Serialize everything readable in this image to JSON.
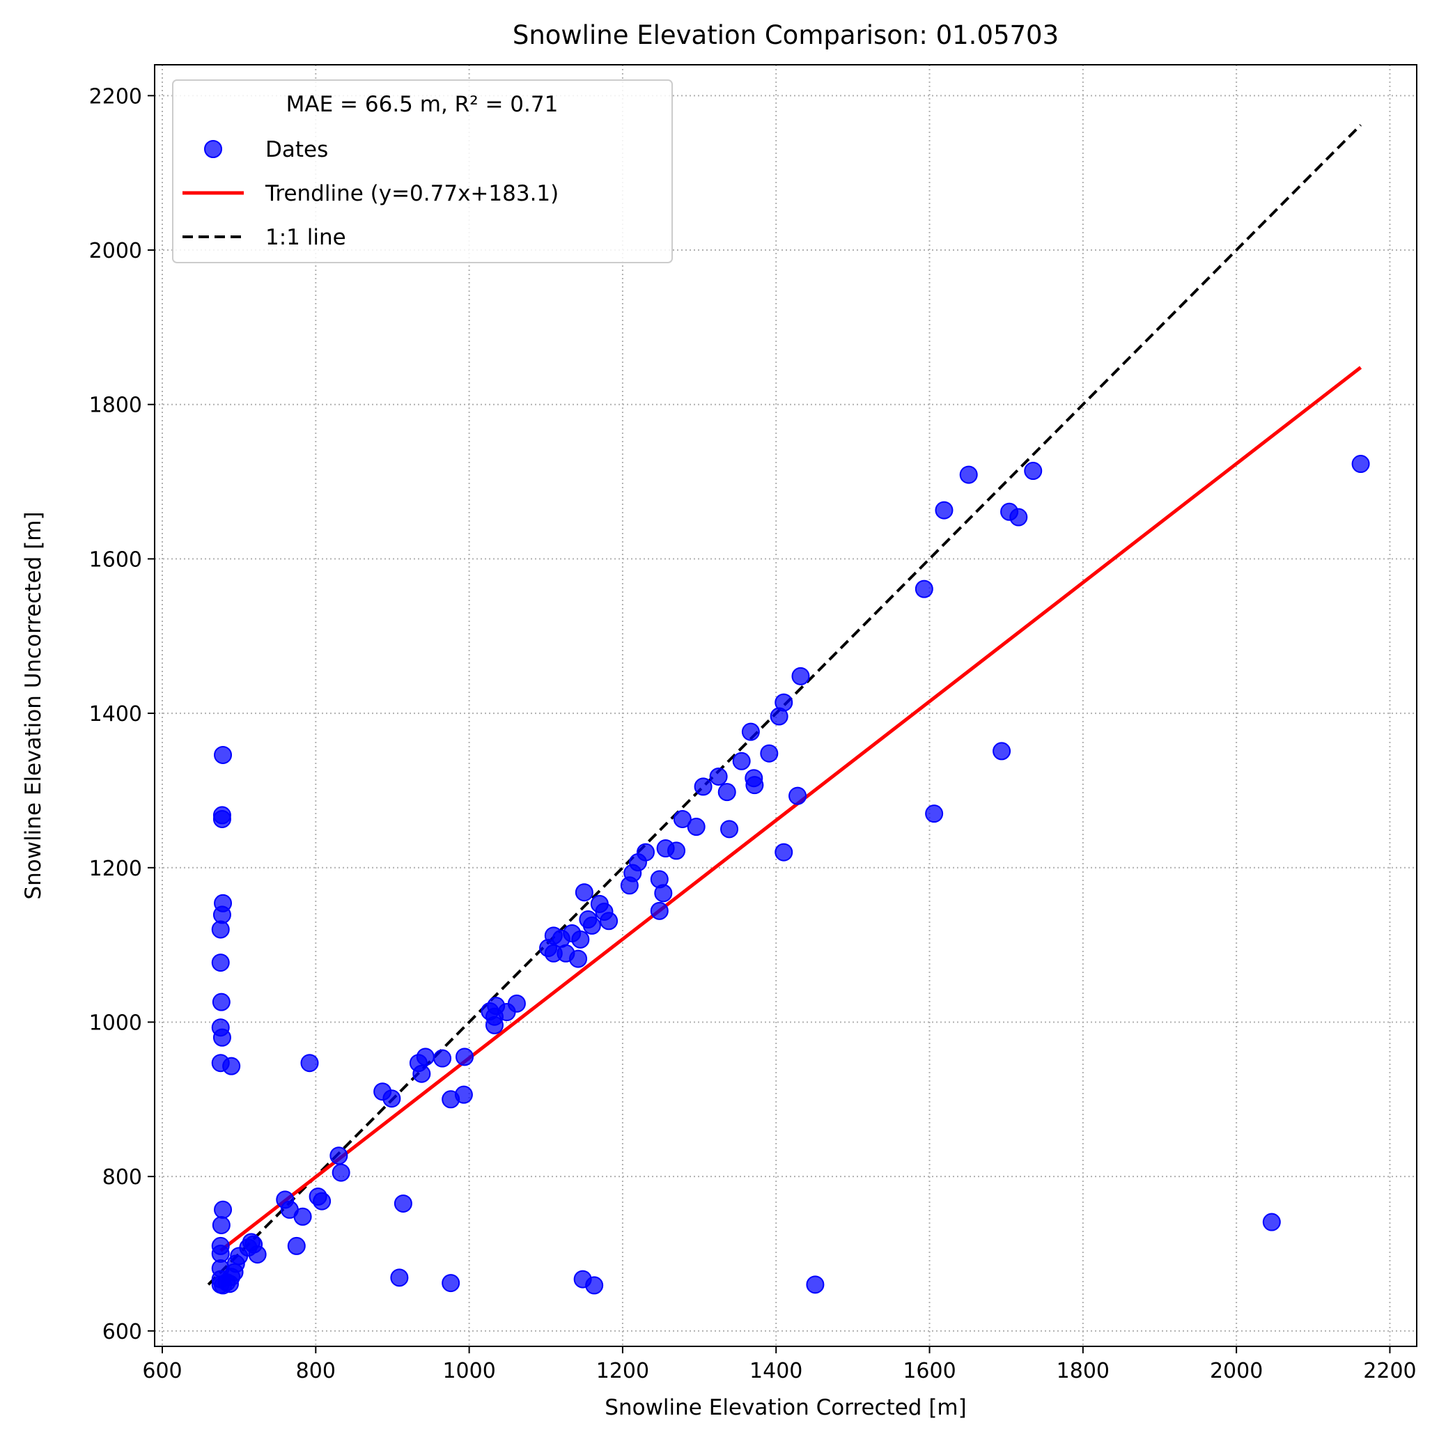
{
  "chart_data": {
    "type": "scatter",
    "title": "Snowline Elevation Comparison: 01.05703",
    "xlabel": "Snowline Elevation Corrected [m]",
    "ylabel": "Snowline Elevation Uncorrected [m]",
    "xlim": [
      590,
      2235
    ],
    "ylim": [
      580,
      2240
    ],
    "xticks": [
      600,
      800,
      1000,
      1200,
      1400,
      1600,
      1800,
      2000,
      2200
    ],
    "yticks": [
      600,
      800,
      1000,
      1200,
      1400,
      1600,
      1800,
      2000,
      2200
    ],
    "grid": true,
    "legend": {
      "placement": "upper-left",
      "title": "MAE = 66.5 m,  R² = 0.71",
      "entries": [
        "Dates",
        "Trendline (y=0.77x+183.1)",
        "1:1 line"
      ]
    },
    "colors": {
      "points": "#0000ff",
      "trendline": "#ff0000",
      "one_to_one": "#000000"
    },
    "trendline": {
      "slope": 0.77,
      "intercept": 183.1,
      "x_range": [
        676,
        2162
      ],
      "y_range": [
        704,
        1848
      ]
    },
    "one_to_one": {
      "x_range": [
        660,
        2162
      ]
    },
    "series": [
      {
        "name": "Dates",
        "points": [
          [
            679,
            1346
          ],
          [
            678,
            1268
          ],
          [
            678,
            1263
          ],
          [
            679,
            1154
          ],
          [
            678,
            1139
          ],
          [
            676,
            1120
          ],
          [
            676,
            1077
          ],
          [
            677,
            1026
          ],
          [
            676,
            993
          ],
          [
            678,
            980
          ],
          [
            676,
            947
          ],
          [
            690,
            943
          ],
          [
            679,
            757
          ],
          [
            677,
            737
          ],
          [
            676,
            710
          ],
          [
            676,
            700
          ],
          [
            676,
            681
          ],
          [
            676,
            667
          ],
          [
            676,
            660
          ],
          [
            679,
            659
          ],
          [
            684,
            663
          ],
          [
            688,
            661
          ],
          [
            690,
            670
          ],
          [
            694,
            676
          ],
          [
            696,
            687
          ],
          [
            700,
            697
          ],
          [
            712,
            708
          ],
          [
            716,
            715
          ],
          [
            719,
            712
          ],
          [
            724,
            699
          ],
          [
            760,
            770
          ],
          [
            766,
            757
          ],
          [
            775,
            710
          ],
          [
            783,
            748
          ],
          [
            792,
            947
          ],
          [
            803,
            774
          ],
          [
            808,
            768
          ],
          [
            830,
            827
          ],
          [
            833,
            805
          ],
          [
            887,
            910
          ],
          [
            899,
            901
          ],
          [
            909,
            669
          ],
          [
            914,
            765
          ],
          [
            934,
            947
          ],
          [
            938,
            933
          ],
          [
            943,
            955
          ],
          [
            965,
            953
          ],
          [
            976,
            900
          ],
          [
            976,
            662
          ],
          [
            993,
            906
          ],
          [
            994,
            955
          ],
          [
            1027,
            1014
          ],
          [
            1033,
            996
          ],
          [
            1033,
            1007
          ],
          [
            1035,
            1021
          ],
          [
            1049,
            1013
          ],
          [
            1062,
            1024
          ],
          [
            1103,
            1096
          ],
          [
            1110,
            1112
          ],
          [
            1110,
            1089
          ],
          [
            1120,
            1108
          ],
          [
            1126,
            1089
          ],
          [
            1134,
            1115
          ],
          [
            1142,
            1082
          ],
          [
            1145,
            1107
          ],
          [
            1148,
            667
          ],
          [
            1150,
            1168
          ],
          [
            1155,
            1133
          ],
          [
            1160,
            1125
          ],
          [
            1163,
            659
          ],
          [
            1170,
            1153
          ],
          [
            1176,
            1143
          ],
          [
            1182,
            1131
          ],
          [
            1209,
            1177
          ],
          [
            1213,
            1193
          ],
          [
            1220,
            1207
          ],
          [
            1230,
            1220
          ],
          [
            1248,
            1185
          ],
          [
            1248,
            1144
          ],
          [
            1253,
            1167
          ],
          [
            1256,
            1225
          ],
          [
            1270,
            1222
          ],
          [
            1278,
            1263
          ],
          [
            1296,
            1253
          ],
          [
            1305,
            1305
          ],
          [
            1325,
            1318
          ],
          [
            1336,
            1298
          ],
          [
            1339,
            1250
          ],
          [
            1355,
            1338
          ],
          [
            1367,
            1376
          ],
          [
            1371,
            1316
          ],
          [
            1372,
            1307
          ],
          [
            1391,
            1348
          ],
          [
            1404,
            1396
          ],
          [
            1410,
            1414
          ],
          [
            1410,
            1220
          ],
          [
            1428,
            1293
          ],
          [
            1432,
            1448
          ],
          [
            1451,
            660
          ],
          [
            1593,
            1561
          ],
          [
            1606,
            1270
          ],
          [
            1619,
            1663
          ],
          [
            1651,
            1709
          ],
          [
            1694,
            1351
          ],
          [
            1704,
            1661
          ],
          [
            1716,
            1654
          ],
          [
            1735,
            1714
          ],
          [
            2046,
            741
          ],
          [
            2162,
            1723
          ]
        ]
      }
    ]
  }
}
